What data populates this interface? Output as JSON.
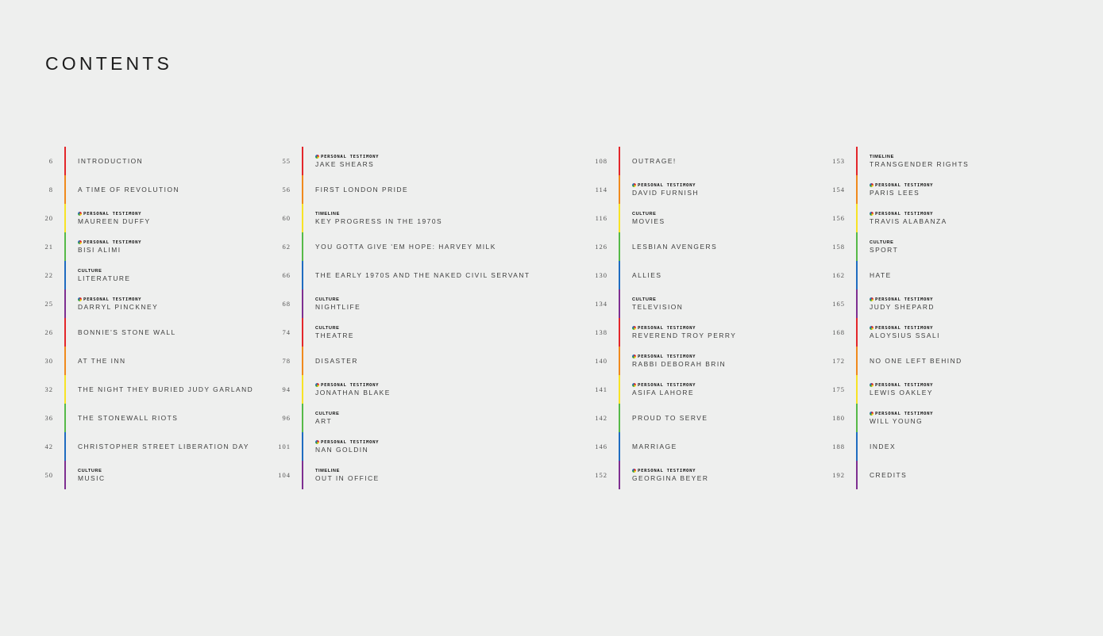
{
  "title": "CONTENTS",
  "rainbow": [
    "#e3262b",
    "#f08a1d",
    "#f7e326",
    "#56b948",
    "#1f6cc0",
    "#7e2f91"
  ],
  "columns": [
    {
      "entries": [
        {
          "page": "6",
          "label": "INTRODUCTION",
          "tag": ""
        },
        {
          "page": "8",
          "label": "A TIME OF REVOLUTION",
          "tag": ""
        },
        {
          "page": "20",
          "label": "MAUREEN DUFFY",
          "tag": "PERSONAL TESTIMONY"
        },
        {
          "page": "21",
          "label": "BISI ALIMI",
          "tag": "PERSONAL TESTIMONY"
        },
        {
          "page": "22",
          "label": "LITERATURE",
          "tag": "CULTURE"
        },
        {
          "page": "25",
          "label": "DARRYL PINCKNEY",
          "tag": "PERSONAL TESTIMONY"
        },
        {
          "page": "26",
          "label": "BONNIE'S STONE WALL",
          "tag": ""
        },
        {
          "page": "30",
          "label": "AT THE INN",
          "tag": ""
        },
        {
          "page": "32",
          "label": "THE NIGHT THEY BURIED JUDY GARLAND",
          "tag": ""
        },
        {
          "page": "36",
          "label": "THE STONEWALL RIOTS",
          "tag": ""
        },
        {
          "page": "42",
          "label": "CHRISTOPHER STREET LIBERATION DAY",
          "tag": ""
        },
        {
          "page": "50",
          "label": "MUSIC",
          "tag": "CULTURE"
        }
      ]
    },
    {
      "entries": [
        {
          "page": "55",
          "label": "JAKE SHEARS",
          "tag": "PERSONAL TESTIMONY"
        },
        {
          "page": "56",
          "label": "FIRST LONDON PRIDE",
          "tag": ""
        },
        {
          "page": "60",
          "label": "KEY PROGRESS IN THE 1970S",
          "tag": "TIMELINE"
        },
        {
          "page": "62",
          "label": "YOU GOTTA GIVE 'EM HOPE: HARVEY MILK",
          "tag": ""
        },
        {
          "page": "66",
          "label": "THE EARLY 1970S AND THE NAKED CIVIL SERVANT",
          "tag": ""
        },
        {
          "page": "68",
          "label": "NIGHTLIFE",
          "tag": "CULTURE"
        },
        {
          "page": "74",
          "label": "THEATRE",
          "tag": "CULTURE"
        },
        {
          "page": "78",
          "label": "DISASTER",
          "tag": ""
        },
        {
          "page": "94",
          "label": "JONATHAN BLAKE",
          "tag": "PERSONAL TESTIMONY"
        },
        {
          "page": "96",
          "label": "ART",
          "tag": "CULTURE"
        },
        {
          "page": "101",
          "label": "NAN GOLDIN",
          "tag": "PERSONAL TESTIMONY"
        },
        {
          "page": "104",
          "label": "OUT IN OFFICE",
          "tag": "TIMELINE"
        }
      ]
    },
    {
      "entries": [
        {
          "page": "108",
          "label": "OUTRAGE!",
          "tag": ""
        },
        {
          "page": "114",
          "label": "DAVID FURNISH",
          "tag": "PERSONAL TESTIMONY"
        },
        {
          "page": "116",
          "label": "MOVIES",
          "tag": "CULTURE"
        },
        {
          "page": "126",
          "label": "LESBIAN AVENGERS",
          "tag": ""
        },
        {
          "page": "130",
          "label": "ALLIES",
          "tag": ""
        },
        {
          "page": "134",
          "label": "TELEVISION",
          "tag": "CULTURE"
        },
        {
          "page": "138",
          "label": "REVEREND TROY PERRY",
          "tag": "PERSONAL TESTIMONY"
        },
        {
          "page": "140",
          "label": "RABBI DEBORAH BRIN",
          "tag": "PERSONAL TESTIMONY"
        },
        {
          "page": "141",
          "label": "ASIFA LAHORE",
          "tag": "PERSONAL TESTIMONY"
        },
        {
          "page": "142",
          "label": "PROUD TO SERVE",
          "tag": ""
        },
        {
          "page": "146",
          "label": "MARRIAGE",
          "tag": ""
        },
        {
          "page": "152",
          "label": "GEORGINA BEYER",
          "tag": "PERSONAL TESTIMONY"
        }
      ]
    },
    {
      "entries": [
        {
          "page": "153",
          "label": "TRANSGENDER RIGHTS",
          "tag": "TIMELINE"
        },
        {
          "page": "154",
          "label": "PARIS LEES",
          "tag": "PERSONAL TESTIMONY"
        },
        {
          "page": "156",
          "label": "TRAVIS ALABANZA",
          "tag": "PERSONAL TESTIMONY"
        },
        {
          "page": "158",
          "label": "SPORT",
          "tag": "CULTURE"
        },
        {
          "page": "162",
          "label": "HATE",
          "tag": ""
        },
        {
          "page": "165",
          "label": "JUDY SHEPARD",
          "tag": "PERSONAL TESTIMONY"
        },
        {
          "page": "168",
          "label": "ALOYSIUS SSALI",
          "tag": "PERSONAL TESTIMONY"
        },
        {
          "page": "172",
          "label": "NO ONE LEFT BEHIND",
          "tag": ""
        },
        {
          "page": "175",
          "label": "LEWIS OAKLEY",
          "tag": "PERSONAL TESTIMONY"
        },
        {
          "page": "180",
          "label": "WILL YOUNG",
          "tag": "PERSONAL TESTIMONY"
        },
        {
          "page": "188",
          "label": "INDEX",
          "tag": ""
        },
        {
          "page": "192",
          "label": "CREDITS",
          "tag": ""
        }
      ]
    }
  ]
}
